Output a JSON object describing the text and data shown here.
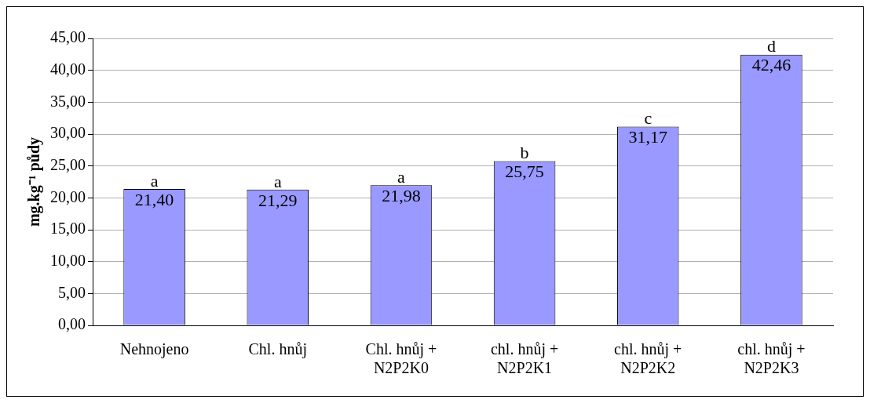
{
  "chart_data": {
    "type": "bar",
    "ylabel": "mg.kg⁻¹ půdy",
    "categories": [
      "Nehnojeno",
      "Chl. hnůj",
      "Chl. hnůj + N2P2K0",
      "chl. hnůj + N2P2K1",
      "chl. hnůj + N2P2K2",
      "chl. hnůj + N2P2K3"
    ],
    "values": [
      21.4,
      21.29,
      21.98,
      25.75,
      31.17,
      42.46
    ],
    "value_labels": [
      "21,40",
      "21,29",
      "21,98",
      "25,75",
      "31,17",
      "42,46"
    ],
    "color": "#9999ff",
    "ylim": [
      0,
      45
    ],
    "yticks": [
      {
        "value": 0,
        "label": "0,00"
      },
      {
        "value": 5,
        "label": "5,00"
      },
      {
        "value": 10,
        "label": "10,00"
      },
      {
        "value": 15,
        "label": "15,00"
      },
      {
        "value": 20,
        "label": "20,00"
      },
      {
        "value": 25,
        "label": "25,00"
      },
      {
        "value": 30,
        "label": "30,00"
      },
      {
        "value": 35,
        "label": "35,00"
      },
      {
        "value": 40,
        "label": "40,00"
      },
      {
        "value": 45,
        "label": "45,00"
      }
    ],
    "grid": "y",
    "legend": false,
    "annotations": [
      {
        "text": "a",
        "x": "Nehnojeno",
        "y": 21.4
      },
      {
        "text": "a",
        "x": "Chl. hnůj",
        "y": 21.29
      },
      {
        "text": "a",
        "x": "Chl. hnůj + N2P2K0",
        "y": 21.98
      },
      {
        "text": "b",
        "x": "chl. hnůj + N2P2K1",
        "y": 25.75
      },
      {
        "text": "c",
        "x": "chl. hnůj + N2P2K2",
        "y": 31.17
      },
      {
        "text": "d",
        "x": "chl. hnůj + N2P2K3",
        "y": 42.46
      }
    ]
  }
}
